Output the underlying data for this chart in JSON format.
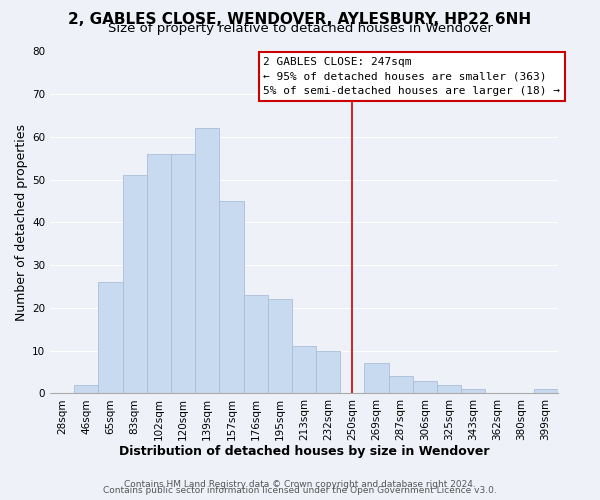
{
  "title": "2, GABLES CLOSE, WENDOVER, AYLESBURY, HP22 6NH",
  "subtitle": "Size of property relative to detached houses in Wendover",
  "xlabel": "Distribution of detached houses by size in Wendover",
  "ylabel": "Number of detached properties",
  "bin_labels": [
    "28sqm",
    "46sqm",
    "65sqm",
    "83sqm",
    "102sqm",
    "120sqm",
    "139sqm",
    "157sqm",
    "176sqm",
    "195sqm",
    "213sqm",
    "232sqm",
    "250sqm",
    "269sqm",
    "287sqm",
    "306sqm",
    "325sqm",
    "343sqm",
    "362sqm",
    "380sqm",
    "399sqm"
  ],
  "bar_heights": [
    0,
    2,
    26,
    51,
    56,
    56,
    62,
    45,
    23,
    22,
    11,
    10,
    0,
    7,
    4,
    3,
    2,
    1,
    0,
    0,
    1
  ],
  "bar_color": "#c8daf0",
  "bar_edgecolor": "#a8bfd8",
  "vline_x_index": 12,
  "vline_color": "#cc0000",
  "annotation_title": "2 GABLES CLOSE: 247sqm",
  "annotation_line1": "← 95% of detached houses are smaller (363)",
  "annotation_line2": "5% of semi-detached houses are larger (18) →",
  "annotation_box_edgecolor": "#cc0000",
  "ylim": [
    0,
    80
  ],
  "yticks": [
    0,
    10,
    20,
    30,
    40,
    50,
    60,
    70,
    80
  ],
  "footer_line1": "Contains HM Land Registry data © Crown copyright and database right 2024.",
  "footer_line2": "Contains public sector information licensed under the Open Government Licence v3.0.",
  "background_color": "#eef2f8",
  "grid_color": "#ffffff",
  "title_fontsize": 11,
  "subtitle_fontsize": 9.5,
  "axis_label_fontsize": 9,
  "tick_fontsize": 7.5,
  "annotation_fontsize": 8,
  "footer_fontsize": 6.5
}
